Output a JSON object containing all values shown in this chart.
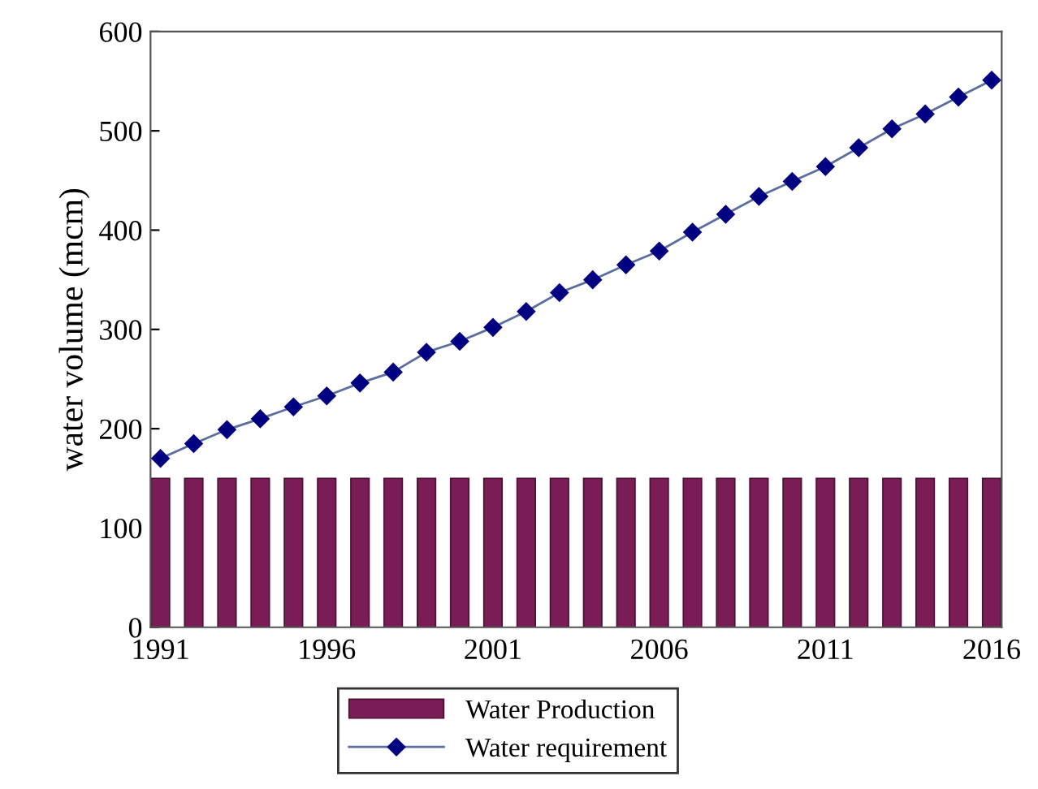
{
  "chart_data": {
    "type": "line",
    "ylabel": "water volume (mcm)",
    "x": [
      1991,
      1992,
      1993,
      1994,
      1995,
      1996,
      1997,
      1998,
      1999,
      2000,
      2001,
      2002,
      2003,
      2004,
      2005,
      2006,
      2007,
      2008,
      2009,
      2010,
      2011,
      2012,
      2013,
      2014,
      2015,
      2016
    ],
    "series": [
      {
        "name": "Water Production",
        "type": "bar",
        "color": "#7a1c55",
        "values": [
          150,
          150,
          150,
          150,
          150,
          150,
          150,
          150,
          150,
          150,
          150,
          150,
          150,
          150,
          150,
          150,
          150,
          150,
          150,
          150,
          150,
          150,
          150,
          150,
          150,
          150
        ]
      },
      {
        "name": "Water requirement",
        "color": "#000080",
        "marker": "diamond",
        "values": [
          170,
          185,
          199,
          210,
          222,
          233,
          246,
          257,
          277,
          288,
          302,
          318,
          337,
          350,
          365,
          379,
          398,
          416,
          434,
          449,
          464,
          483,
          502,
          517,
          534,
          551
        ]
      }
    ],
    "xlim": [
      1990.7,
      2016.3
    ],
    "xticks": [
      1991,
      1996,
      2001,
      2006,
      2011,
      2016
    ],
    "ylim": [
      0,
      600
    ],
    "yticks": [
      0,
      100,
      200,
      300,
      400,
      500,
      600
    ],
    "grid": false,
    "legend": "bottom"
  }
}
